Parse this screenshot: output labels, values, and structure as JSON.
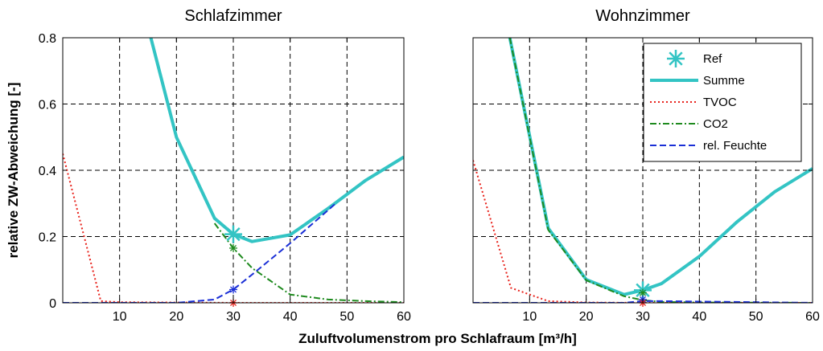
{
  "figure": {
    "xlabel": "Zuluftvolumenstrom pro Schlafraum [m³/h]",
    "ylabel": "relative ZW-Abweichung [-]"
  },
  "chart_data": [
    {
      "type": "line",
      "title": "Schlafzimmer",
      "xlim": [
        0,
        60
      ],
      "ylim": [
        0,
        0.8
      ],
      "xticks": [
        10,
        20,
        30,
        40,
        50,
        60
      ],
      "yticks": [
        0,
        0.2,
        0.4,
        0.6,
        0.8
      ],
      "ytick_labels": [
        "0",
        "0.2",
        "0.4",
        "0.6",
        "0.8"
      ],
      "grid": true,
      "ref": {
        "name": "Ref",
        "points": [
          [
            30,
            0.207
          ],
          [
            30,
            0.165
          ],
          [
            30,
            0.04
          ],
          [
            30,
            0.0
          ]
        ]
      },
      "series": [
        {
          "name": "Summe",
          "color": "#33c4c4",
          "style": "solid",
          "points": [
            [
              15.5,
              0.8
            ],
            [
              20,
              0.5
            ],
            [
              26.7,
              0.255
            ],
            [
              30,
              0.207
            ],
            [
              33.3,
              0.185
            ],
            [
              40,
              0.205
            ],
            [
              46.7,
              0.285
            ],
            [
              53.3,
              0.37
            ],
            [
              60,
              0.44
            ]
          ]
        },
        {
          "name": "TVOC",
          "color": "#e8211a",
          "style": "dotted",
          "points": [
            [
              0,
              0.45
            ],
            [
              6.7,
              0.005
            ],
            [
              10,
              0.002
            ],
            [
              20,
              0.001
            ],
            [
              30,
              0.0
            ],
            [
              40,
              0.0
            ],
            [
              60,
              0.0
            ]
          ]
        },
        {
          "name": "CO2",
          "color": "#1e8a1e",
          "style": "dashdot",
          "points": [
            [
              26.7,
              0.24
            ],
            [
              30,
              0.165
            ],
            [
              33.3,
              0.105
            ],
            [
              40,
              0.025
            ],
            [
              46.7,
              0.01
            ],
            [
              53.3,
              0.005
            ],
            [
              60,
              0.002
            ]
          ]
        },
        {
          "name": "rel. Feuchte",
          "color": "#1a2fd6",
          "style": "dashed",
          "points": [
            [
              0,
              0.0
            ],
            [
              20,
              0.0
            ],
            [
              26.7,
              0.01
            ],
            [
              30,
              0.04
            ],
            [
              33.3,
              0.085
            ],
            [
              40,
              0.18
            ],
            [
              46.7,
              0.28
            ],
            [
              48,
              0.3
            ]
          ]
        }
      ]
    },
    {
      "type": "line",
      "title": "Wohnzimmer",
      "xlim": [
        0,
        60
      ],
      "ylim": [
        0,
        0.8
      ],
      "xticks": [
        10,
        20,
        30,
        40,
        50,
        60
      ],
      "yticks": [
        0,
        0.2,
        0.4,
        0.6,
        0.8
      ],
      "ytick_labels": [],
      "grid": true,
      "ref": {
        "name": "Ref",
        "points": [
          [
            30,
            0.038
          ],
          [
            30,
            0.03
          ],
          [
            30,
            0.01
          ],
          [
            30,
            0.0
          ]
        ]
      },
      "series": [
        {
          "name": "Summe",
          "color": "#33c4c4",
          "style": "solid",
          "points": [
            [
              6.5,
              0.8
            ],
            [
              13.3,
              0.225
            ],
            [
              20,
              0.07
            ],
            [
              26.7,
              0.025
            ],
            [
              30,
              0.038
            ],
            [
              33.3,
              0.058
            ],
            [
              40,
              0.14
            ],
            [
              46.7,
              0.245
            ],
            [
              53.3,
              0.335
            ],
            [
              60,
              0.405
            ]
          ]
        },
        {
          "name": "TVOC",
          "color": "#e8211a",
          "style": "dotted",
          "points": [
            [
              0,
              0.43
            ],
            [
              6.7,
              0.045
            ],
            [
              13.3,
              0.005
            ],
            [
              20,
              0.001
            ],
            [
              30,
              0.0
            ],
            [
              60,
              0.0
            ]
          ]
        },
        {
          "name": "CO2",
          "color": "#1e8a1e",
          "style": "dashdot",
          "points": [
            [
              6.5,
              0.8
            ],
            [
              13.3,
              0.22
            ],
            [
              20,
              0.068
            ],
            [
              26.7,
              0.02
            ],
            [
              30,
              0.008
            ],
            [
              33.3,
              0.003
            ],
            [
              40,
              0.001
            ],
            [
              60,
              0.0
            ]
          ]
        },
        {
          "name": "rel. Feuchte",
          "color": "#1a2fd6",
          "style": "dashed",
          "points": [
            [
              0,
              0.0
            ],
            [
              26.7,
              0.0
            ],
            [
              30,
              0.005
            ],
            [
              33.3,
              0.005
            ],
            [
              60,
              0.0
            ]
          ]
        }
      ]
    }
  ],
  "legend": {
    "placement": "top-right of second panel",
    "entries": [
      {
        "label": "Ref",
        "marker": "asterisk",
        "color": "#33c4c4"
      },
      {
        "label": "Summe",
        "style": "solid",
        "color": "#33c4c4"
      },
      {
        "label": "TVOC",
        "style": "dotted",
        "color": "#e8211a"
      },
      {
        "label": "CO2",
        "style": "dashdot",
        "color": "#1e8a1e"
      },
      {
        "label": "rel. Feuchte",
        "style": "dashed",
        "color": "#1a2fd6"
      }
    ]
  }
}
